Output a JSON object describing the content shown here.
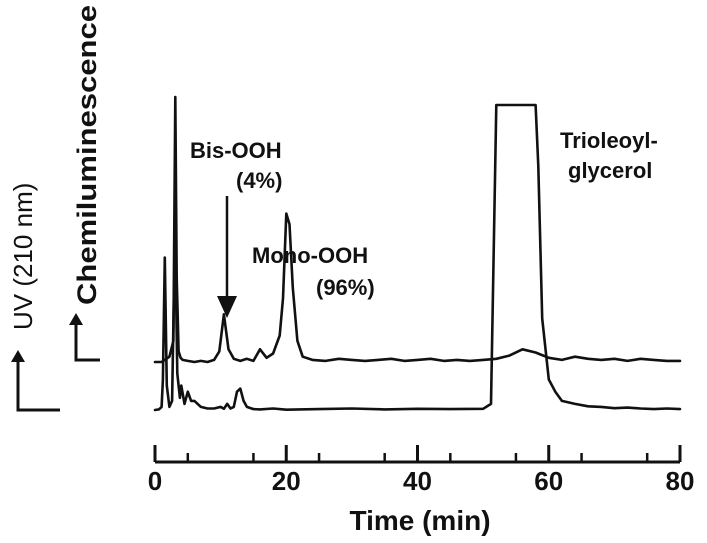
{
  "chart_data": {
    "type": "line",
    "title": "",
    "xlabel": "Time (min)",
    "ylabel_lower": "UV (210 nm)",
    "ylabel_upper": "Chemiluminescence",
    "xlim": [
      0,
      80
    ],
    "x_ticks": [
      "0",
      "20",
      "40",
      "60",
      "80"
    ],
    "grid": false,
    "series": [
      {
        "name": "Chemiluminescence",
        "x": [
          0,
          1.0,
          1.5,
          2.2,
          2.8,
          3.1,
          3.3,
          3.6,
          3.9,
          4.2,
          5,
          6,
          7,
          8,
          9,
          9.8,
          10.5,
          11.2,
          12,
          13,
          14,
          15,
          16,
          17,
          18,
          19,
          19.5,
          20,
          20.5,
          21,
          21.7,
          22.5,
          24,
          26,
          28,
          30,
          32,
          34,
          36,
          38,
          40,
          42,
          44,
          46,
          48,
          50,
          52,
          54,
          56,
          58,
          60,
          62,
          64,
          66,
          68,
          70,
          72,
          74,
          76,
          78,
          80
        ],
        "y": [
          0,
          0,
          0.2,
          0.5,
          2,
          25,
          8,
          1,
          0.4,
          0.2,
          0.1,
          0,
          0.1,
          0,
          0.2,
          1,
          4.5,
          1.2,
          0.3,
          0.1,
          0.3,
          0.1,
          1.2,
          0.4,
          0.8,
          2.5,
          6,
          14,
          13,
          7,
          2,
          0.5,
          0.2,
          0.1,
          0.3,
          0.2,
          0.1,
          0.2,
          0.3,
          0.1,
          0.2,
          0.3,
          0.1,
          0.2,
          0.1,
          0.2,
          0.3,
          0.6,
          1.2,
          0.9,
          0.4,
          0.2,
          0.5,
          0.3,
          0.2,
          0.3,
          0.1,
          0.3,
          0.2,
          0.1,
          0.1
        ]
      },
      {
        "name": "UV",
        "x": [
          0,
          0.6,
          1.0,
          1.2,
          1.5,
          1.8,
          2.2,
          2.6,
          2.9,
          3.1,
          3.4,
          3.8,
          4.0,
          4.5,
          5,
          5.5,
          6,
          7,
          8,
          9,
          10,
          10.5,
          11,
          11.5,
          12,
          12.5,
          13,
          13.5,
          14,
          15,
          16,
          18,
          20,
          25,
          30,
          35,
          40,
          45,
          50,
          51.2,
          52,
          52.6,
          53,
          55,
          57,
          58,
          58.4,
          59,
          60,
          61,
          62,
          64,
          66,
          68,
          70,
          72,
          74,
          76,
          78,
          80
        ],
        "y": [
          0,
          0.2,
          1,
          10,
          50,
          8,
          1,
          3,
          40,
          55,
          12,
          4,
          8,
          2,
          6,
          3,
          3,
          1,
          0.5,
          0.5,
          1,
          0.4,
          2,
          0.5,
          1,
          6,
          7,
          3,
          1,
          0.3,
          0.2,
          0.5,
          0.1,
          0.3,
          0.5,
          0.2,
          0.4,
          0.3,
          0.4,
          2,
          100,
          100,
          100,
          100,
          100,
          100,
          80,
          30,
          10,
          6,
          3,
          2,
          1.2,
          1,
          0.6,
          0.8,
          0.5,
          0.3,
          0.5,
          0.3
        ]
      }
    ],
    "annotations": [
      {
        "line1": "Bis-OOH",
        "line2": "(4%)"
      },
      {
        "line1": "Mono-OOH",
        "line2": "(96%)"
      },
      {
        "line1": "Trioleoyl-",
        "line2": "glycerol"
      }
    ]
  }
}
